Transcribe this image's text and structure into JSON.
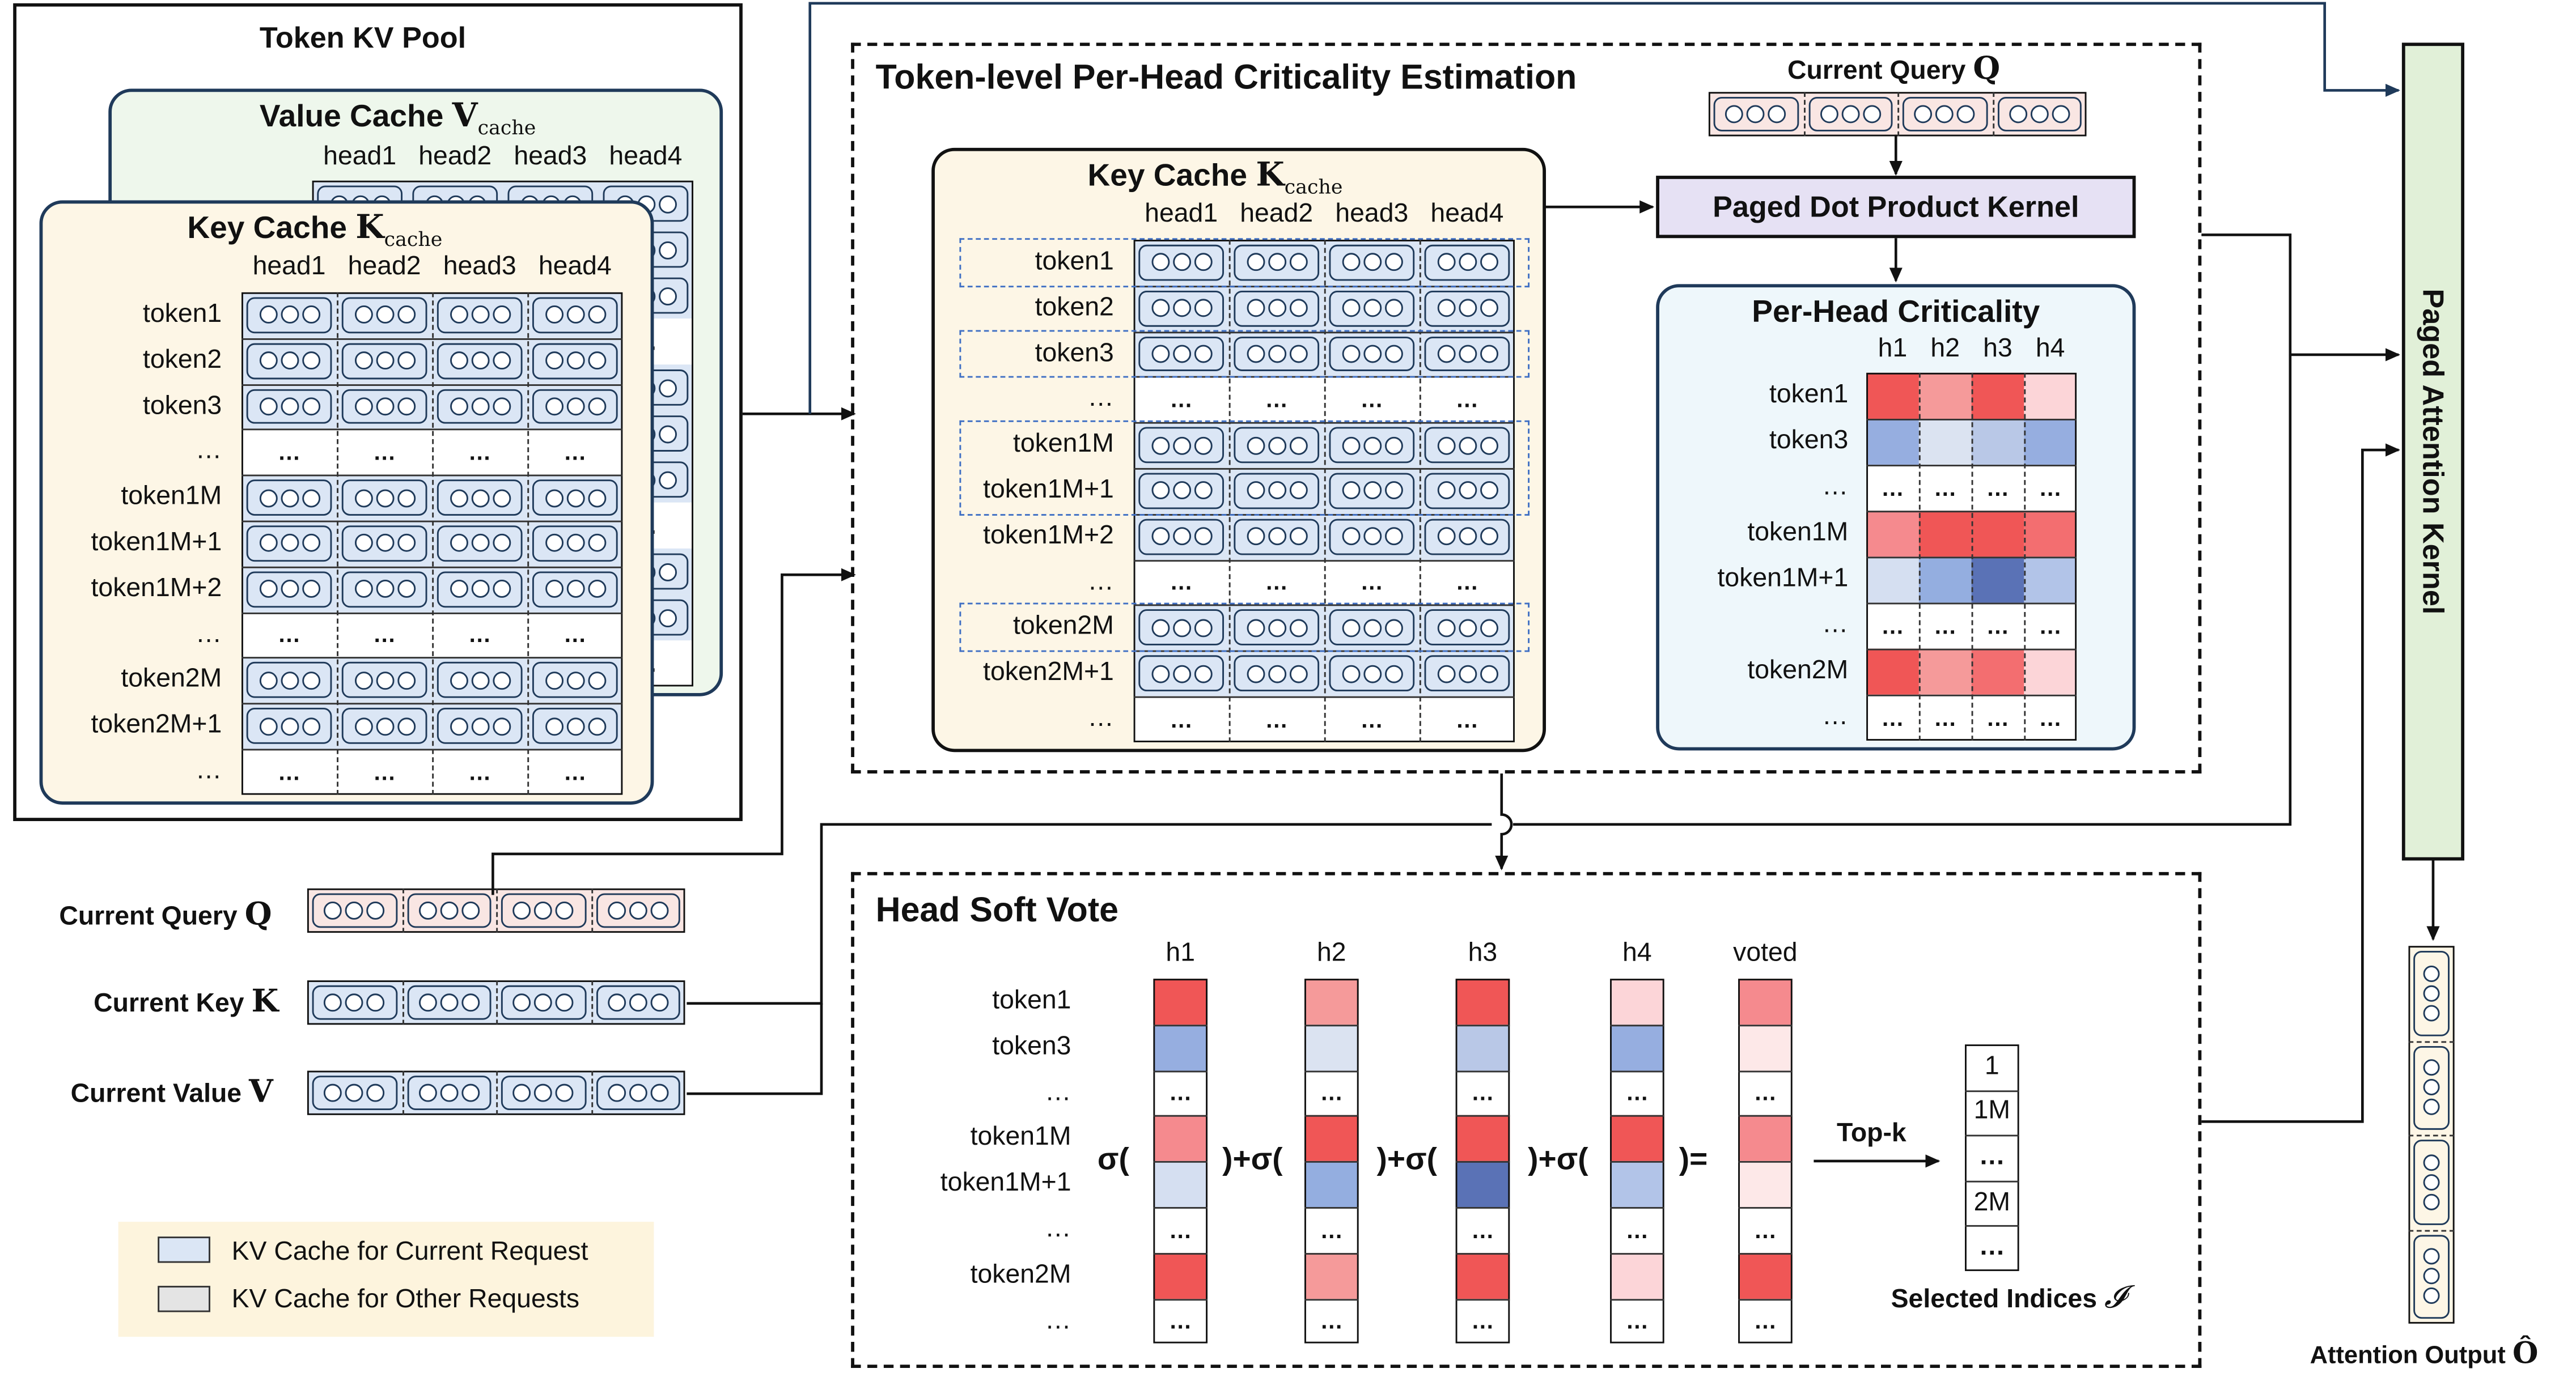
{
  "pool": {
    "title": "Token KV Pool",
    "value_cache_title": "Value Cache",
    "key_cache_title": "Key Cache",
    "heads": [
      "head1",
      "head2",
      "head3",
      "head4"
    ],
    "token_rows": [
      "token1",
      "token2",
      "token3",
      "…",
      "token1M",
      "token1M+1",
      "token1M+2",
      "…",
      "token2M",
      "token2M+1",
      "…"
    ],
    "ellipsis": "…"
  },
  "estimation": {
    "title": "Token-level Per-Head Criticality Estimation",
    "key_cache_title": "Key Cache",
    "heads": [
      "head1",
      "head2",
      "head3",
      "head4"
    ],
    "token_rows": [
      "token1",
      "token2",
      "token3",
      "…",
      "token1M",
      "token1M+1",
      "token1M+2",
      "…",
      "token2M",
      "token2M+1",
      "…"
    ],
    "current_query_label": "Current Query",
    "kernel_label": "Paged Dot Product Kernel",
    "criticality": {
      "title": "Per-Head Criticality",
      "heads": [
        "h1",
        "h2",
        "h3",
        "h4"
      ],
      "rows": [
        "token1",
        "token3",
        "…",
        "token1M",
        "token1M+1",
        "…",
        "token2M",
        "…"
      ]
    }
  },
  "attention_kernel": {
    "label": "Paged Attention Kernel"
  },
  "output": {
    "label": "Attention Output"
  },
  "inputs": {
    "query": "Current Query",
    "key": "Current Key",
    "value": "Current Value"
  },
  "legend": {
    "current": "KV Cache for Current Request",
    "other": "KV Cache for Other Requests",
    "current_color": "#dbe6f5",
    "other_color": "#e4e4e4"
  },
  "vote": {
    "title": "Head Soft Vote",
    "columns": [
      "h1",
      "h2",
      "h3",
      "h4",
      "voted"
    ],
    "rows": [
      "token1",
      "token3",
      "…",
      "token1M",
      "token1M+1",
      "…",
      "token2M",
      "…"
    ],
    "ops": [
      "σ(",
      ")+σ(",
      ")+σ(",
      ")+σ(",
      ")="
    ],
    "topk": "Top-k",
    "selected_label": "Selected Indices",
    "selected": [
      "1",
      "1M",
      "…",
      "2M",
      "…"
    ]
  },
  "symbols": {
    "V": "V",
    "K": "K",
    "Q": "Q",
    "cache": "cache",
    "I": "𝓘",
    "Ohat": "Ô"
  },
  "colors": {
    "token_pool_bg": "#fdf6e6",
    "value_cache_bg": "#eef7ec",
    "criticality_bg": "#eef7fb",
    "kernel_bg": "#e6e1f4",
    "attention_bg": "#e1f0d8",
    "query_bg": "#f9e6e3",
    "cell_blue": "#dbe6f5",
    "selected_outline": "#3f6fc4"
  },
  "heat_colors": {
    "criticality": [
      [
        "#f05656",
        "#f59a9a",
        "#f05656",
        "#fcd5d8"
      ],
      [
        "#96aee0",
        "#dbe3f1",
        "#b9c8e7",
        "#96aee0"
      ],
      [
        null,
        null,
        null,
        null
      ],
      [
        "#f58a8e",
        "#f05656",
        "#f05656",
        "#f36e70"
      ],
      [
        "#d5dff1",
        "#94aee0",
        "#5a72b6",
        "#b2c4e8"
      ],
      [
        null,
        null,
        null,
        null
      ],
      [
        "#f05656",
        "#f59a9a",
        "#f36e70",
        "#fcd5d8"
      ],
      [
        null,
        null,
        null,
        null
      ]
    ],
    "vote": [
      [
        "#f05656",
        "#f59a9a",
        "#f05656",
        "#fcd5d8",
        "#f58a8e"
      ],
      [
        "#96aee0",
        "#dbe3f1",
        "#b9c8e7",
        "#96aee0",
        "#fde8e8"
      ],
      [
        null,
        null,
        null,
        null,
        null
      ],
      [
        "#f58a8e",
        "#f05656",
        "#f05656",
        "#f05656",
        "#f58a8e"
      ],
      [
        "#d5dff1",
        "#94aee0",
        "#5a72b6",
        "#b2c4e8",
        "#fde8e8"
      ],
      [
        null,
        null,
        null,
        null,
        null
      ],
      [
        "#f05656",
        "#f59a9a",
        "#f05656",
        "#fcd5d8",
        "#f05656"
      ],
      [
        null,
        null,
        null,
        null,
        null
      ]
    ]
  }
}
